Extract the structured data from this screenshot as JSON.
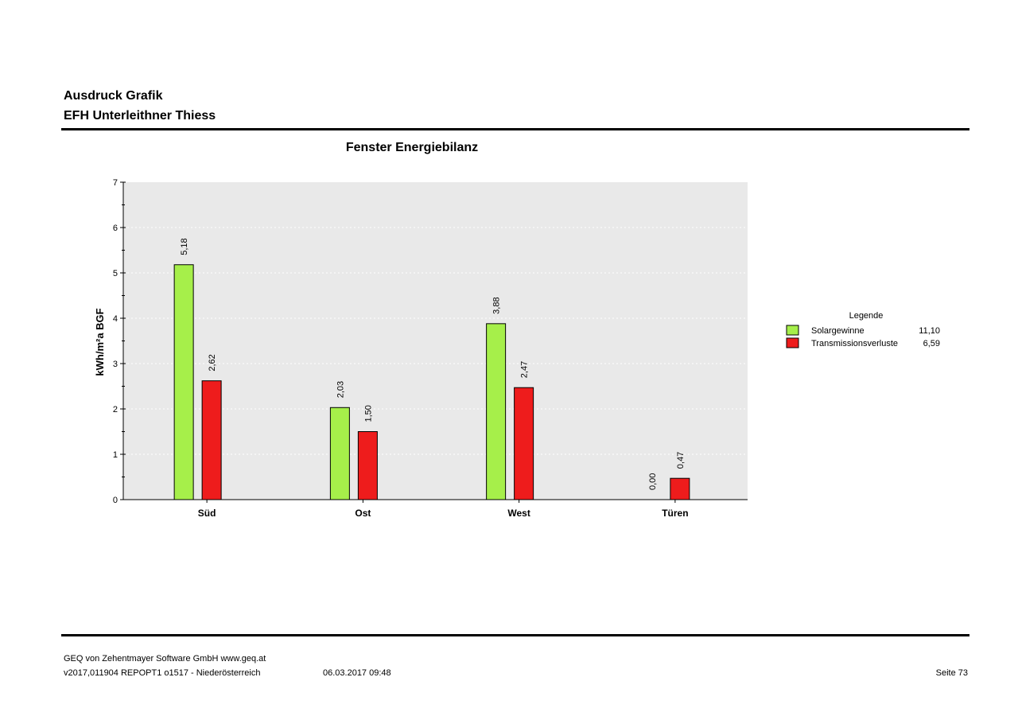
{
  "header": {
    "title": "Ausdruck Grafik",
    "project": "EFH Unterleithner Thiess"
  },
  "chart_data": {
    "type": "bar",
    "title": "Fenster Energiebilanz",
    "ylabel": "kWh/m²a BGF",
    "xlabel": "",
    "ylim": [
      0,
      7
    ],
    "yticks": [
      "0",
      "1",
      "2",
      "3",
      "4",
      "5",
      "6",
      "7"
    ],
    "categories": [
      "Süd",
      "Ost",
      "West",
      "Türen"
    ],
    "series": [
      {
        "name": "Solargewinne",
        "values": [
          5.18,
          2.03,
          3.88,
          0.0
        ],
        "labels": [
          "5,18",
          "2,03",
          "3,88",
          "0,00"
        ],
        "color": "#a6ef4a"
      },
      {
        "name": "Transmissionsverluste",
        "values": [
          2.62,
          1.5,
          2.47,
          0.47
        ],
        "labels": [
          "2,62",
          "1,50",
          "2,47",
          "0,47"
        ],
        "color": "#ee1c1c"
      }
    ],
    "legend": {
      "title": "Legende",
      "position": "right",
      "totals": [
        "11,10",
        "6,59"
      ]
    },
    "plot_background": "#e9e9e9",
    "grid": true
  },
  "footer": {
    "company": "GEQ von Zehentmayer Software GmbH www.geq.at",
    "version": "v2017,011904 REPOPT1 o1517 - Niederösterreich",
    "date": "06.03.2017 09:48",
    "page": "Seite 73"
  }
}
